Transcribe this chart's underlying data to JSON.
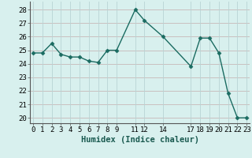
{
  "x": [
    0,
    1,
    2,
    3,
    4,
    5,
    6,
    7,
    8,
    9,
    11,
    12,
    14,
    17,
    18,
    19,
    20,
    21,
    22,
    23
  ],
  "y": [
    24.8,
    24.8,
    25.5,
    24.7,
    24.5,
    24.5,
    24.2,
    24.1,
    25.0,
    25.0,
    28.0,
    27.2,
    26.0,
    23.8,
    25.9,
    25.9,
    24.8,
    21.8,
    20.0,
    20.0
  ],
  "xticks": [
    0,
    1,
    2,
    3,
    4,
    5,
    6,
    7,
    8,
    9,
    11,
    12,
    14,
    17,
    18,
    19,
    20,
    21,
    22,
    23
  ],
  "xtick_labels": [
    "0",
    "1",
    "2",
    "3",
    "4",
    "5",
    "6",
    "7",
    "8",
    "9",
    "11",
    "12",
    "14",
    "17",
    "18",
    "19",
    "20",
    "21",
    "22",
    "23"
  ],
  "yticks": [
    20,
    21,
    22,
    23,
    24,
    25,
    26,
    27,
    28
  ],
  "xlim": [
    -0.3,
    23.3
  ],
  "ylim": [
    19.6,
    28.6
  ],
  "xlabel": "Humidex (Indice chaleur)",
  "line_color": "#1a6b61",
  "marker": "D",
  "marker_size": 2.5,
  "bg_color": "#d8f0ee",
  "grid_color_h": "#c8b8b8",
  "grid_color_v": "#b8d4d4",
  "line_width": 1.0,
  "xlabel_fontsize": 7.5,
  "tick_fontsize": 6.5
}
